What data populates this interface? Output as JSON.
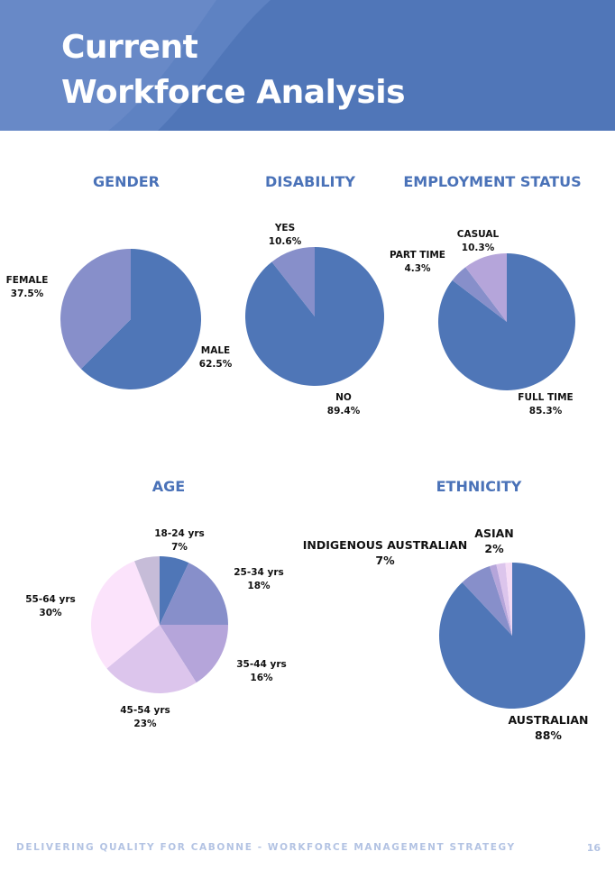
{
  "header": {
    "title_line1": "Current",
    "title_line2": "Workforce Analysis"
  },
  "footer": {
    "text": "DELIVERING QUALITY FOR CABONNE - WORKFORCE MANAGEMENT STRATEGY",
    "page_number": "16"
  },
  "colors": {
    "header_bg": "#5076b8",
    "title_color": "#4a72b8"
  },
  "chart_data": [
    {
      "id": "gender",
      "type": "pie",
      "title": "GENDER",
      "slices": [
        {
          "label": "MALE",
          "value_label": "62.5%",
          "value": 62.5,
          "color": "#4f76b7"
        },
        {
          "label": "FEMALE",
          "value_label": "37.5%",
          "value": 37.5,
          "color": "#878fca"
        }
      ]
    },
    {
      "id": "disability",
      "type": "pie",
      "title": "DISABILITY",
      "slices": [
        {
          "label": "NO",
          "value_label": "89.4%",
          "value": 89.4,
          "color": "#4f76b7"
        },
        {
          "label": "YES",
          "value_label": "10.6%",
          "value": 10.6,
          "color": "#878fca"
        }
      ]
    },
    {
      "id": "employment",
      "type": "pie",
      "title": "EMPLOYMENT STATUS",
      "slices": [
        {
          "label": "FULL TIME",
          "value_label": "85.3%",
          "value": 85.3,
          "color": "#4f76b7"
        },
        {
          "label": "PART TIME",
          "value_label": "4.3%",
          "value": 4.3,
          "color": "#878fca"
        },
        {
          "label": "CASUAL",
          "value_label": "10.3%",
          "value": 10.3,
          "color": "#b5a5da"
        }
      ]
    },
    {
      "id": "age",
      "type": "pie",
      "title": "AGE",
      "slices": [
        {
          "label": "18-24 yrs",
          "value_label": "7%",
          "value": 7,
          "color": "#4f76b7"
        },
        {
          "label": "25-34 yrs",
          "value_label": "18%",
          "value": 18,
          "color": "#878fca"
        },
        {
          "label": "35-44 yrs",
          "value_label": "16%",
          "value": 16,
          "color": "#b5a5da"
        },
        {
          "label": "45-54 yrs",
          "value_label": "23%",
          "value": 23,
          "color": "#dcc5ec"
        },
        {
          "label": "55-64 yrs",
          "value_label": "30%",
          "value": 30,
          "color": "#fbe3fb"
        },
        {
          "label": "",
          "value_label": "",
          "value": 6,
          "color": "#c6bcd8"
        }
      ]
    },
    {
      "id": "ethnicity",
      "type": "pie",
      "title": "ETHNICITY",
      "slices": [
        {
          "label": "AUSTRALIAN",
          "value_label": "88%",
          "value": 88,
          "color": "#4f76b7"
        },
        {
          "label": "INDIGENOUS AUSTRALIAN",
          "value_label": "7%",
          "value": 7,
          "color": "#878fca"
        },
        {
          "label": "",
          "value_label": "",
          "value": 1.5,
          "color": "#b5a5da"
        },
        {
          "label": "ASIAN",
          "value_label": "2%",
          "value": 2,
          "color": "#dcc5ec"
        },
        {
          "label": "",
          "value_label": "",
          "value": 1.5,
          "color": "#f5dcf5"
        }
      ]
    }
  ]
}
